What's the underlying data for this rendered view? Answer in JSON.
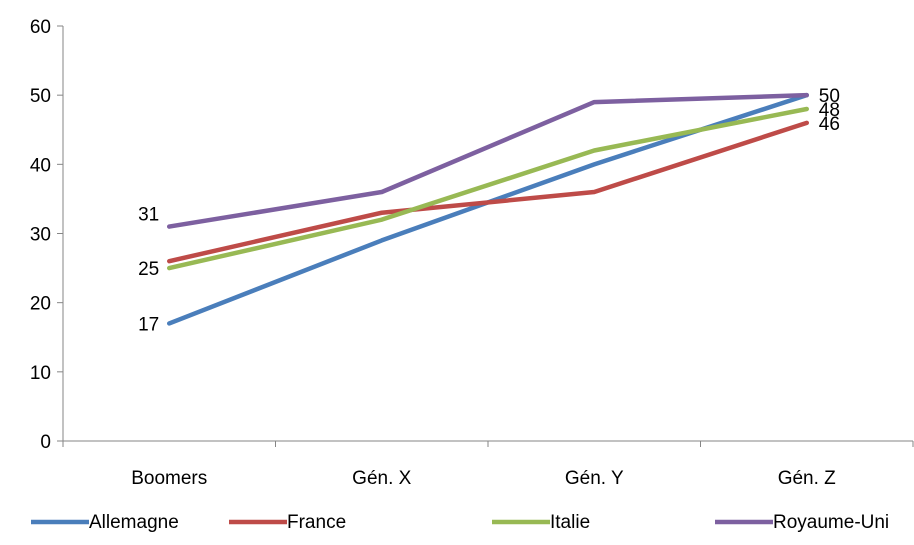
{
  "chart_data": {
    "type": "line",
    "categories": [
      "Boomers",
      "Gén. X",
      "Gén. Y",
      "Gén. Z"
    ],
    "ylim": [
      0,
      60
    ],
    "y_ticks": [
      0,
      10,
      20,
      30,
      40,
      50,
      60
    ],
    "grid": false,
    "legend_position": "bottom",
    "series": [
      {
        "name": "Allemagne",
        "color": "#4a7ebb",
        "values": [
          17,
          29,
          40,
          50
        ]
      },
      {
        "name": "France",
        "color": "#be4b48",
        "values": [
          26,
          33,
          36,
          46
        ]
      },
      {
        "name": "Italie",
        "color": "#98b954",
        "values": [
          25,
          32,
          42,
          48
        ]
      },
      {
        "name": "Royaume-Uni",
        "color": "#7d60a0",
        "values": [
          31,
          36,
          49,
          50
        ]
      }
    ],
    "data_labels": [
      {
        "series": "Royaume-Uni",
        "category": "Boomers",
        "text": "31",
        "side": "left"
      },
      {
        "series": "Italie",
        "category": "Boomers",
        "text": "25",
        "side": "left"
      },
      {
        "series": "Allemagne",
        "category": "Boomers",
        "text": "17",
        "side": "left"
      },
      {
        "series": "Royaume-Uni",
        "category": "Gén. Z",
        "text": "50",
        "side": "right"
      },
      {
        "series": "Italie",
        "category": "Gén. Z",
        "text": "48",
        "side": "right"
      },
      {
        "series": "France",
        "category": "Gén. Z",
        "text": "46",
        "side": "right"
      }
    ]
  }
}
